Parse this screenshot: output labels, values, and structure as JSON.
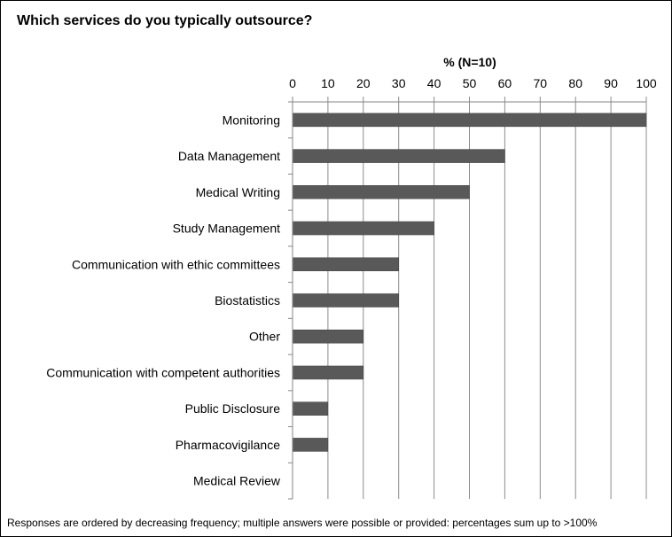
{
  "chart_data": {
    "type": "bar",
    "orientation": "horizontal",
    "title": "Which services do you typically outsource?",
    "xlabel": "% (N=10)",
    "ylabel": "",
    "xlim": [
      0,
      100
    ],
    "xticks": [
      "0",
      "10",
      "20",
      "30",
      "40",
      "50",
      "60",
      "70",
      "80",
      "90",
      "100"
    ],
    "x_axis_position": "top",
    "grid": true,
    "categories": [
      "Monitoring",
      "Data Management",
      "Medical Writing",
      "Study Management",
      "Communication with ethic committees",
      "Biostatistics",
      "Other",
      "Communication with competent authorities",
      "Public Disclosure",
      "Pharmacovigilance",
      "Medical Review"
    ],
    "values": [
      100,
      60,
      50,
      40,
      30,
      30,
      20,
      20,
      10,
      10,
      0
    ],
    "bar_color": "#595959",
    "footnote": "Responses are ordered by decreasing frequency; multiple answers were possible or provided: percentages sum up to >100%"
  }
}
